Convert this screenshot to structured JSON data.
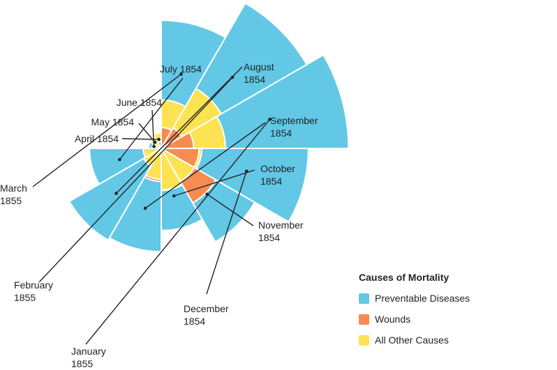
{
  "chart_data": {
    "type": "polar-area",
    "legend": {
      "title": "Causes of Mortality",
      "placement": "bottom-right",
      "items": [
        {
          "key": "preventable",
          "label": "Preventable Diseases",
          "color": "#62c8e6"
        },
        {
          "key": "wounds",
          "label": "Wounds",
          "color": "#f78c50"
        },
        {
          "key": "other",
          "label": "All Other Causes",
          "color": "#fde352"
        }
      ]
    },
    "months": [
      {
        "label": [
          "April 1854"
        ],
        "preventable": 1.4,
        "wounds": 0,
        "other": 7
      },
      {
        "label": [
          "May 1854"
        ],
        "preventable": 6.2,
        "wounds": 0,
        "other": 4.6
      },
      {
        "label": [
          "June 1854"
        ],
        "preventable": 4.7,
        "wounds": 0,
        "other": 2.5
      },
      {
        "label": [
          "July 1854"
        ],
        "preventable": 150,
        "wounds": 0,
        "other": 9.6
      },
      {
        "label": [
          "August",
          "1854"
        ],
        "preventable": 328.5,
        "wounds": 0.4,
        "other": 11.9
      },
      {
        "label": [
          "September",
          "1854"
        ],
        "preventable": 312.2,
        "wounds": 32.1,
        "other": 27.7
      },
      {
        "label": [
          "October",
          "1854"
        ],
        "preventable": 197,
        "wounds": 51.7,
        "other": 50.1
      },
      {
        "label": [
          "November",
          "1854"
        ],
        "preventable": 340.6,
        "wounds": 115.8,
        "other": 42.8
      },
      {
        "label": [
          "December",
          "1854"
        ],
        "preventable": 631.5,
        "wounds": 41.7,
        "other": 48
      },
      {
        "label": [
          "January",
          "1855"
        ],
        "preventable": 1022.8,
        "wounds": 30.7,
        "other": 120
      },
      {
        "label": [
          "February",
          "1855"
        ],
        "preventable": 822.8,
        "wounds": 16.3,
        "other": 140.1
      },
      {
        "label": [
          "March",
          "1855"
        ],
        "preventable": 480.3,
        "wounds": 12.8,
        "other": 68.6
      }
    ]
  }
}
